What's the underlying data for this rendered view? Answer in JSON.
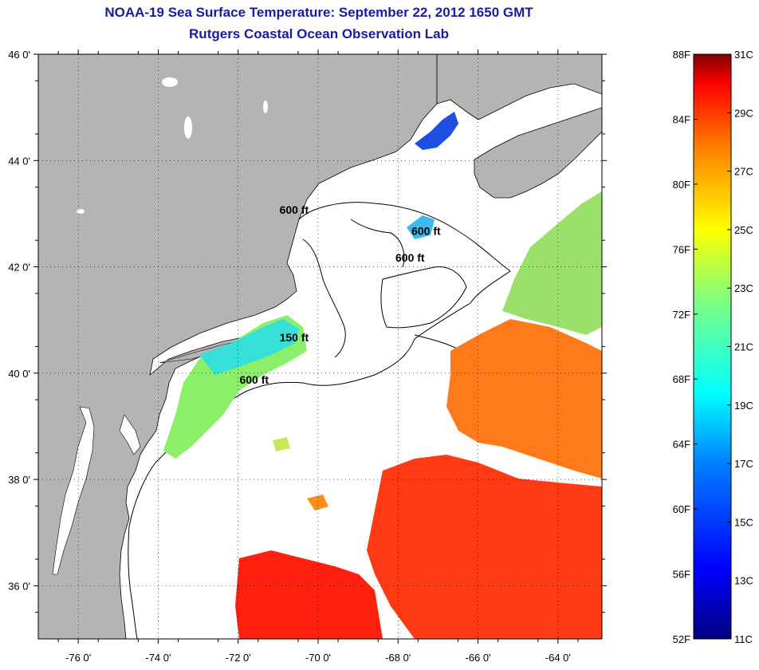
{
  "header": {
    "title": "NOAA-19 Sea Surface Temperature:  September 22, 2012 1650 GMT",
    "subtitle": "Rutgers Coastal Ocean Observation Lab"
  },
  "map": {
    "lon_range": [
      -77.0,
      -62.9
    ],
    "lat_range": [
      35.0,
      46.0
    ],
    "lat_ticks": [
      {
        "value": 46,
        "label": "46 0'"
      },
      {
        "value": 44,
        "label": "44 0'"
      },
      {
        "value": 42,
        "label": "42 0'"
      },
      {
        "value": 40,
        "label": "40 0'"
      },
      {
        "value": 38,
        "label": "38 0'"
      },
      {
        "value": 36,
        "label": "36 0'"
      }
    ],
    "lon_ticks": [
      {
        "value": -76,
        "label": "-76 0'"
      },
      {
        "value": -74,
        "label": "-74 0'"
      },
      {
        "value": -72,
        "label": "-72 0'"
      },
      {
        "value": -70,
        "label": "-70 0'"
      },
      {
        "value": -68,
        "label": "-68 0'"
      },
      {
        "value": -66,
        "label": "-66 0'"
      },
      {
        "value": -64,
        "label": "-64 0'"
      }
    ],
    "contour_labels": [
      {
        "text": "600 ft",
        "lon": -70.6,
        "lat": 43.0
      },
      {
        "text": "600 ft",
        "lon": -67.3,
        "lat": 42.6
      },
      {
        "text": "600 ft",
        "lon": -67.7,
        "lat": 42.1
      },
      {
        "text": "150 ft",
        "lon": -70.6,
        "lat": 40.6
      },
      {
        "text": "600 ft",
        "lon": -71.6,
        "lat": 39.8
      }
    ],
    "colors": {
      "land": "#b4b4b4",
      "ocean": "#ffffff",
      "coast": "#000000"
    }
  },
  "colorbar": {
    "f_labels": [
      "88F",
      "84F",
      "80F",
      "76F",
      "72F",
      "68F",
      "64F",
      "60F",
      "56F",
      "52F"
    ],
    "c_labels": [
      "31C",
      "29C",
      "27C",
      "25C",
      "23C",
      "21C",
      "19C",
      "17C",
      "15C",
      "13C",
      "11C"
    ],
    "range_f": [
      52,
      88
    ],
    "range_c": [
      11,
      31
    ]
  }
}
